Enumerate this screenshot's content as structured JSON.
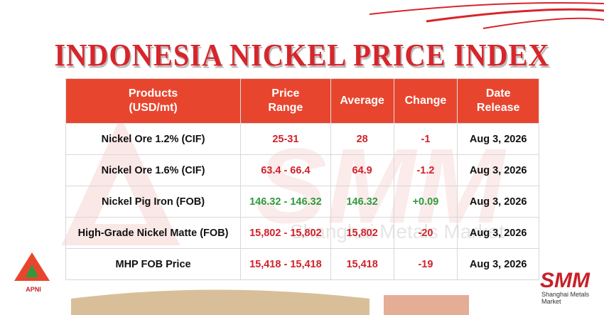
{
  "header": {
    "title": "INDONESIA NICKEL PRICE INDEX"
  },
  "table": {
    "header_color": "#e8452e",
    "columns": [
      "Products\n(USD/mt)",
      "Price\nRange",
      "Average",
      "Change",
      "Date\nRelease"
    ],
    "rows": [
      {
        "color": "#d0222a",
        "cells": [
          "Nickel Ore 1.2% (CIF)",
          "25-31",
          "28",
          "-1",
          "Aug 3, 2026"
        ]
      },
      {
        "color": "#d0222a",
        "cells": [
          "Nickel Ore 1.6% (CIF)",
          "63.4 - 66.4",
          "64.9",
          "-1.2",
          "Aug 3, 2026"
        ]
      },
      {
        "color": "#2f9a3c",
        "cells": [
          "Nickel Pig Iron (FOB)",
          "146.32 - 146.32",
          "146.32",
          "+0.09",
          "Aug 3, 2026"
        ]
      },
      {
        "color": "#d0222a",
        "cells": [
          "High-Grade Nickel Matte (FOB)",
          "15,802 - 15,802",
          "15,802",
          "-20",
          "Aug 3, 2026"
        ]
      },
      {
        "color": "#d0222a",
        "cells": [
          "MHP FOB Price",
          "15,418 - 15,418",
          "15,418",
          "-19",
          "Aug 3, 2026"
        ]
      }
    ]
  },
  "watermark": {
    "logo": "SMM",
    "text": "Shanghai Metals Market"
  },
  "logos": {
    "left": "APNI",
    "right": "SMM",
    "right_subtitle": "Shanghai Metals Market"
  }
}
